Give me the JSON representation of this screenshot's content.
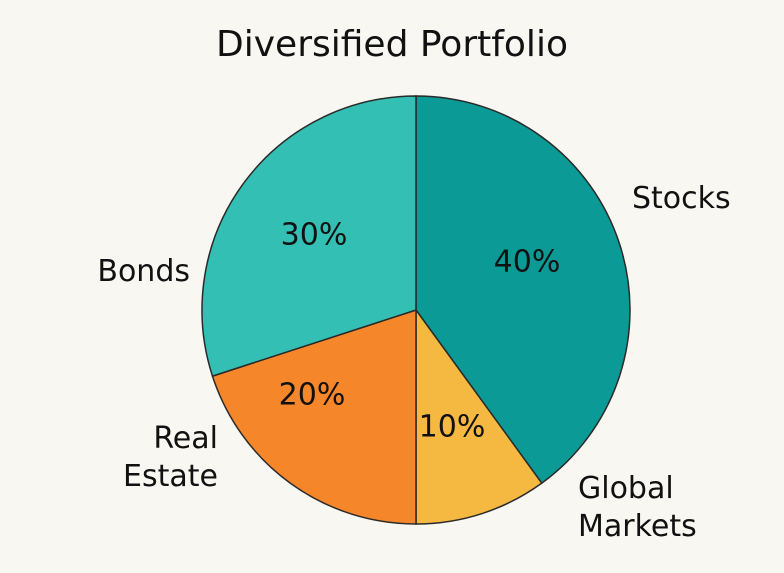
{
  "chart_data": {
    "type": "pie",
    "title": "Diversified Portfolio",
    "slices": [
      {
        "label": "Stocks",
        "value": 40,
        "display": "40%",
        "color": "#0b9a96"
      },
      {
        "label": "Global Markets",
        "value": 10,
        "display": "10%",
        "color": "#f5b942"
      },
      {
        "label": "Real Estate",
        "value": 20,
        "display": "20%",
        "color": "#f5862a"
      },
      {
        "label": "Bonds",
        "value": 30,
        "display": "30%",
        "color": "#33bfb3"
      }
    ]
  }
}
